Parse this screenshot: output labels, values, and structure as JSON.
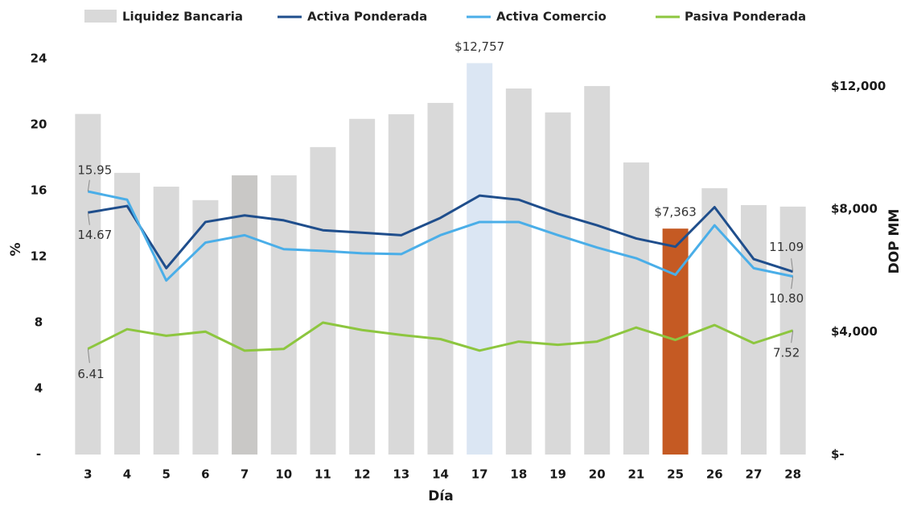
{
  "chart_data": {
    "type": "combo",
    "x_label": "Día",
    "y_label": "%",
    "y2_label": "DOP MM",
    "categories": [
      "3",
      "4",
      "5",
      "6",
      "7",
      "10",
      "11",
      "12",
      "13",
      "14",
      "17",
      "18",
      "19",
      "20",
      "21",
      "25",
      "26",
      "27",
      "28"
    ],
    "ylim": [
      0,
      24
    ],
    "yticks": [
      {
        "value": 0,
        "label": "-"
      },
      4,
      8,
      12,
      16,
      20,
      24
    ],
    "y2lim": [
      0,
      12900
    ],
    "y2ticks": [
      {
        "value": 0,
        "label": "$-"
      },
      {
        "value": 4000,
        "label": "$4,000"
      },
      {
        "value": 8000,
        "label": "$8,000"
      },
      {
        "value": 12000,
        "label": "$12,000"
      }
    ],
    "series": [
      {
        "name": "Liquidez Bancaria",
        "type": "bar",
        "axis": "y2",
        "color": "#d9d9d9",
        "colors": [
          "#d9d9d9",
          "#d9d9d9",
          "#d9d9d9",
          "#d9d9d9",
          "#c9c8c6",
          "#d9d9d9",
          "#d9d9d9",
          "#d9d9d9",
          "#d9d9d9",
          "#d9d9d9",
          "#dbe6f3",
          "#d9d9d9",
          "#d9d9d9",
          "#d9d9d9",
          "#d9d9d9",
          "#c55a23",
          "#d9d9d9",
          "#d9d9d9",
          "#d9d9d9"
        ],
        "values": [
          11100,
          9180,
          8730,
          8290,
          9100,
          9100,
          10020,
          10940,
          11090,
          11460,
          12757,
          11930,
          11150,
          12010,
          9520,
          7363,
          8680,
          8130,
          8080
        ],
        "value_labels": [
          null,
          null,
          null,
          null,
          null,
          null,
          null,
          null,
          null,
          null,
          "$12,757",
          null,
          null,
          null,
          null,
          "$7,363",
          null,
          null,
          null
        ]
      },
      {
        "name": "Activa Ponderada",
        "type": "line",
        "color": "#1f4e8c",
        "values": [
          14.67,
          15.07,
          11.3,
          14.1,
          14.5,
          14.2,
          13.6,
          13.45,
          13.3,
          14.35,
          15.7,
          15.45,
          14.6,
          13.9,
          13.1,
          12.6,
          15.0,
          11.85,
          11.09
        ],
        "value_labels": [
          "14.67",
          null,
          null,
          null,
          null,
          null,
          null,
          null,
          null,
          null,
          null,
          null,
          null,
          null,
          null,
          null,
          null,
          null,
          "11.09"
        ]
      },
      {
        "name": "Activa Comercio",
        "type": "line",
        "color": "#4aaee8",
        "values": [
          15.95,
          15.45,
          10.55,
          12.85,
          13.3,
          12.45,
          12.35,
          12.2,
          12.15,
          13.3,
          14.1,
          14.1,
          13.3,
          12.55,
          11.9,
          10.9,
          13.9,
          11.3,
          10.8
        ],
        "value_labels": [
          "15.95",
          null,
          null,
          null,
          null,
          null,
          null,
          null,
          null,
          null,
          null,
          null,
          null,
          null,
          null,
          null,
          null,
          null,
          "10.80"
        ]
      },
      {
        "name": "Pasiva Ponderada",
        "type": "line",
        "color": "#8dc63f",
        "values": [
          6.41,
          7.6,
          7.2,
          7.45,
          6.3,
          6.4,
          8.0,
          7.55,
          7.25,
          7.0,
          6.3,
          6.85,
          6.65,
          6.85,
          7.7,
          6.95,
          7.85,
          6.75,
          7.52
        ],
        "value_labels": [
          "6.41",
          null,
          null,
          null,
          null,
          null,
          null,
          null,
          null,
          null,
          null,
          null,
          null,
          null,
          null,
          null,
          null,
          null,
          "7.52"
        ]
      }
    ]
  }
}
